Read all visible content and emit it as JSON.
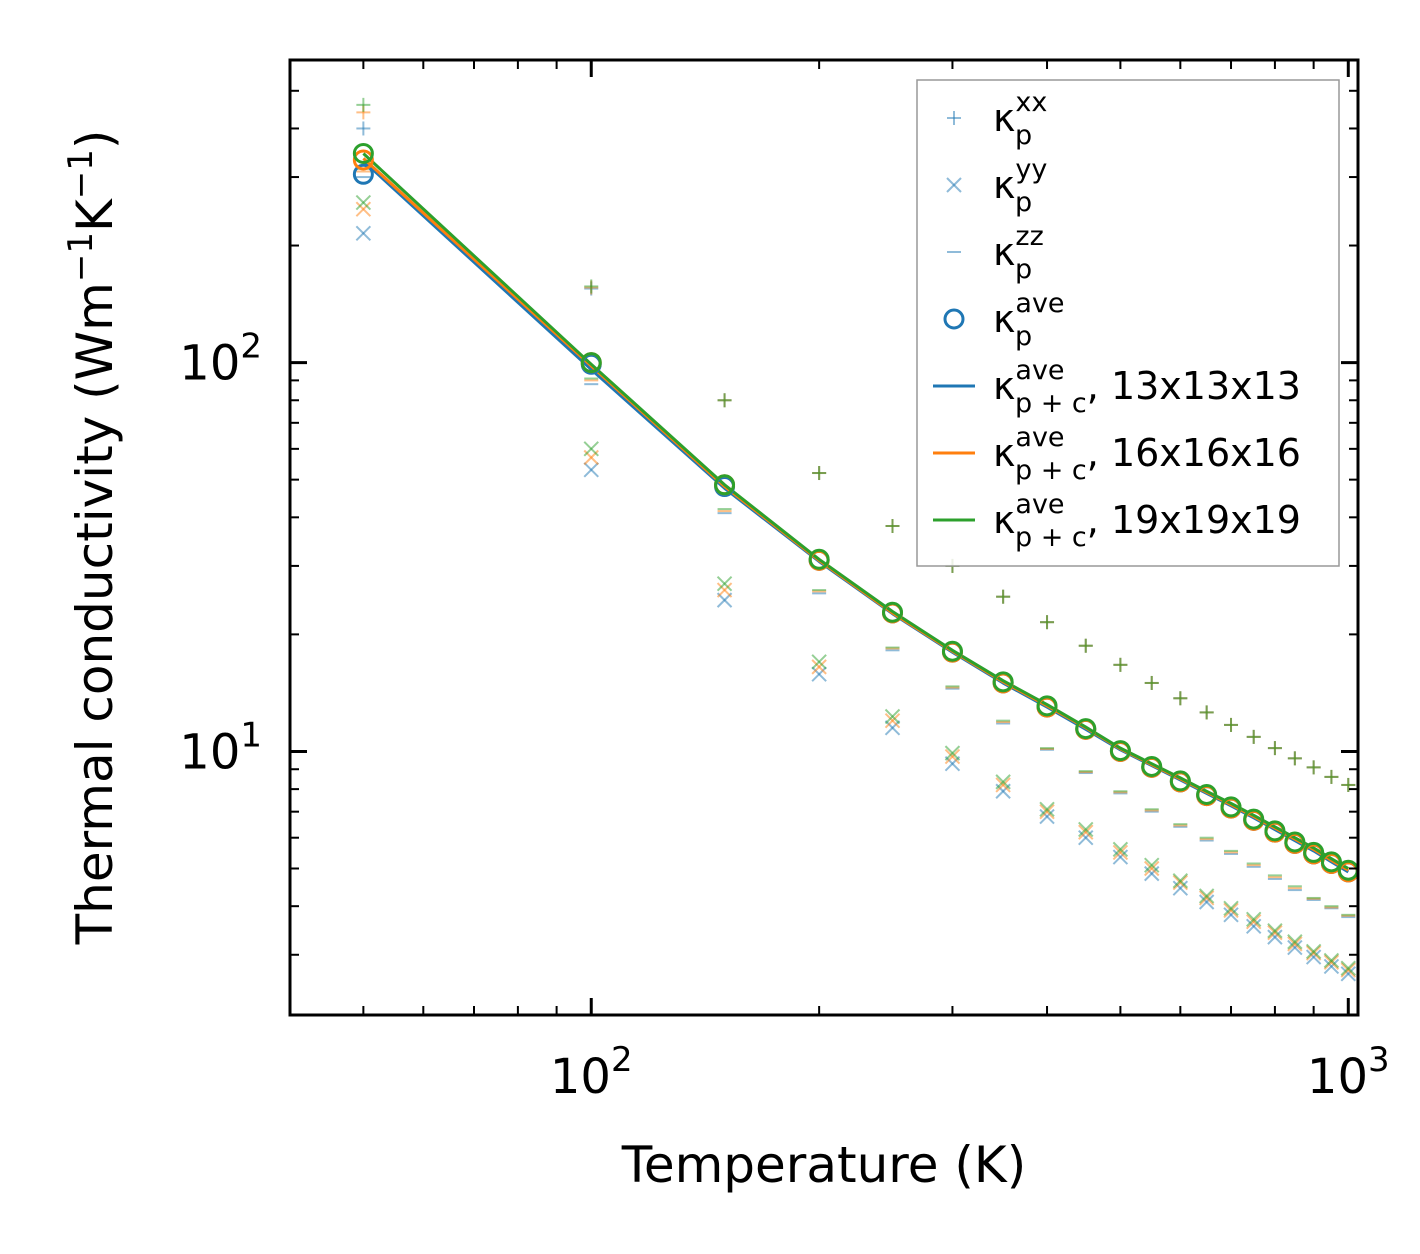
{
  "chart_data": {
    "type": "scatter",
    "title": "",
    "xlabel": "Temperature (K)",
    "ylabel_main": "Thermal conductivity (Wm",
    "ylabel_sup1": "−1",
    "ylabel_mid": "K",
    "ylabel_sup2": "−1",
    "ylabel_end": ")",
    "xscale": "log",
    "yscale": "log",
    "xlim": [
      40,
      1030
    ],
    "ylim": [
      2.1,
      600
    ],
    "x_major_ticks": [
      {
        "value": 100,
        "base": "10",
        "exp": "2"
      },
      {
        "value": 1000,
        "base": "10",
        "exp": "3"
      }
    ],
    "y_major_ticks": [
      {
        "value": 10,
        "base": "10",
        "exp": "1"
      },
      {
        "value": 100,
        "base": "10",
        "exp": "2"
      }
    ],
    "x": [
      50,
      100,
      150,
      200,
      250,
      300,
      350,
      400,
      450,
      500,
      550,
      600,
      650,
      700,
      750,
      800,
      850,
      900,
      950,
      1000
    ],
    "colors": {
      "blue": "#1f77b4",
      "orange": "#ff7f0e",
      "green": "#2ca02c"
    },
    "series": [
      {
        "name": "κp xx (13x13x13)",
        "marker": "plus",
        "color": "#1f77b4",
        "values": [
          400,
          155,
          80,
          52,
          38,
          30,
          25,
          21.5,
          18.7,
          16.7,
          15,
          13.7,
          12.6,
          11.7,
          10.9,
          10.2,
          9.6,
          9.1,
          8.6,
          8.2
        ]
      },
      {
        "name": "κp xx (16x16x16)",
        "marker": "plus",
        "color": "#ff7f0e",
        "values": [
          440,
          156,
          80,
          52,
          38,
          30,
          25,
          21.5,
          18.7,
          16.7,
          15,
          13.7,
          12.6,
          11.7,
          10.9,
          10.2,
          9.6,
          9.1,
          8.6,
          8.2
        ]
      },
      {
        "name": "κp xx (19x19x19)",
        "marker": "plus",
        "color": "#2ca02c",
        "values": [
          460,
          157,
          80,
          52,
          38,
          30,
          25,
          21.5,
          18.7,
          16.7,
          15,
          13.7,
          12.6,
          11.7,
          10.9,
          10.2,
          9.6,
          9.1,
          8.6,
          8.2
        ]
      },
      {
        "name": "κp yy (13x13x13)",
        "marker": "x",
        "color": "#1f77b4",
        "values": [
          215,
          53,
          24.5,
          15.8,
          11.5,
          9.3,
          7.9,
          6.8,
          6.0,
          5.35,
          4.85,
          4.45,
          4.1,
          3.8,
          3.55,
          3.33,
          3.13,
          2.96,
          2.8,
          2.68
        ]
      },
      {
        "name": "κp yy (16x16x16)",
        "marker": "x",
        "color": "#ff7f0e",
        "values": [
          248,
          57,
          26,
          16.5,
          12,
          9.7,
          8.2,
          7.0,
          6.2,
          5.5,
          5.0,
          4.6,
          4.2,
          3.9,
          3.65,
          3.42,
          3.2,
          3.03,
          2.87,
          2.74
        ]
      },
      {
        "name": "κp yy (19x19x19)",
        "marker": "x",
        "color": "#2ca02c",
        "values": [
          258,
          60,
          27,
          17,
          12.3,
          9.9,
          8.35,
          7.1,
          6.3,
          5.6,
          5.1,
          4.65,
          4.25,
          3.95,
          3.7,
          3.46,
          3.24,
          3.06,
          2.9,
          2.77
        ]
      },
      {
        "name": "κp zz (13x13x13)",
        "marker": "dash",
        "color": "#1f77b4",
        "values": [
          300,
          88,
          41,
          25.5,
          18.2,
          14.5,
          11.8,
          10.1,
          8.8,
          7.8,
          7.0,
          6.4,
          5.9,
          5.45,
          5.05,
          4.7,
          4.4,
          4.15,
          3.95,
          3.75
        ]
      },
      {
        "name": "κp zz (16x16x16)",
        "marker": "dash",
        "color": "#ff7f0e",
        "values": [
          310,
          90,
          41.5,
          25.8,
          18.4,
          14.6,
          11.9,
          10.15,
          8.85,
          7.85,
          7.05,
          6.45,
          5.95,
          5.5,
          5.1,
          4.75,
          4.45,
          4.18,
          3.97,
          3.78
        ]
      },
      {
        "name": "κp zz (19x19x19)",
        "marker": "dash",
        "color": "#2ca02c",
        "values": [
          315,
          91,
          42,
          26,
          18.5,
          14.7,
          12.0,
          10.2,
          8.9,
          7.9,
          7.1,
          6.5,
          6.0,
          5.55,
          5.15,
          4.8,
          4.5,
          4.2,
          4.0,
          3.8
        ]
      },
      {
        "name": "κp ave (13x13x13)",
        "marker": "circle",
        "color": "#1f77b4",
        "values": [
          305,
          99,
          48,
          31,
          22.7,
          18.0,
          15.0,
          13.0,
          11.4,
          10.0,
          9.1,
          8.35,
          7.7,
          7.15,
          6.65,
          6.2,
          5.8,
          5.45,
          5.15,
          4.9
        ]
      },
      {
        "name": "κp ave (16x16x16)",
        "marker": "circle",
        "color": "#ff7f0e",
        "values": [
          332,
          100,
          48.5,
          31,
          22.7,
          18.0,
          15.0,
          13.0,
          11.4,
          10.0,
          9.1,
          8.35,
          7.7,
          7.15,
          6.65,
          6.2,
          5.8,
          5.45,
          5.15,
          4.9
        ]
      },
      {
        "name": "κp ave (19x19x19)",
        "marker": "circle",
        "color": "#2ca02c",
        "values": [
          345,
          100,
          48.5,
          31.2,
          22.8,
          18.1,
          15.1,
          13.1,
          11.45,
          10.05,
          9.15,
          8.4,
          7.75,
          7.2,
          6.7,
          6.25,
          5.85,
          5.5,
          5.2,
          4.95
        ]
      },
      {
        "name": "κp+c ave, 13x13x13",
        "marker": "line",
        "color": "#1f77b4",
        "values": [
          330,
          96,
          47.5,
          30.8,
          22.6,
          18.0,
          15.0,
          13.0,
          11.4,
          10.1,
          9.2,
          8.45,
          7.8,
          7.25,
          6.75,
          6.3,
          5.9,
          5.55,
          5.2,
          4.9
        ]
      },
      {
        "name": "κp+c ave, 16x16x16",
        "marker": "line",
        "color": "#ff7f0e",
        "values": [
          335,
          98,
          48,
          31,
          22.7,
          18.1,
          15.1,
          13.1,
          11.5,
          10.15,
          9.25,
          8.5,
          7.85,
          7.3,
          6.8,
          6.35,
          5.95,
          5.6,
          5.25,
          4.95
        ]
      },
      {
        "name": "κp+c ave, 19x19x19",
        "marker": "line",
        "color": "#2ca02c",
        "values": [
          345,
          99,
          48.5,
          31.2,
          22.9,
          18.2,
          15.2,
          13.2,
          11.55,
          10.2,
          9.3,
          8.55,
          7.9,
          7.35,
          6.85,
          6.4,
          6.0,
          5.65,
          5.3,
          5.0
        ]
      }
    ],
    "legend": {
      "placement": "top-right",
      "entries": [
        {
          "marker": "plus",
          "color": "#1f77b4",
          "kappa": "κ",
          "sub": "p",
          "sup": "xx",
          "suffix": ""
        },
        {
          "marker": "x",
          "color": "#1f77b4",
          "kappa": "κ",
          "sub": "p",
          "sup": "yy",
          "suffix": ""
        },
        {
          "marker": "dash",
          "color": "#1f77b4",
          "kappa": "κ",
          "sub": "p",
          "sup": "zz",
          "suffix": ""
        },
        {
          "marker": "circle",
          "color": "#1f77b4",
          "kappa": "κ",
          "sub": "p",
          "sup": "ave",
          "suffix": ""
        },
        {
          "marker": "line",
          "color": "#1f77b4",
          "kappa": "κ",
          "sub": "p + c",
          "sup": "ave",
          "suffix": ", 13x13x13"
        },
        {
          "marker": "line",
          "color": "#ff7f0e",
          "kappa": "κ",
          "sub": "p + c",
          "sup": "ave",
          "suffix": ", 16x16x16"
        },
        {
          "marker": "line",
          "color": "#2ca02c",
          "kappa": "κ",
          "sub": "p + c",
          "sup": "ave",
          "suffix": ", 19x19x19"
        }
      ]
    }
  }
}
